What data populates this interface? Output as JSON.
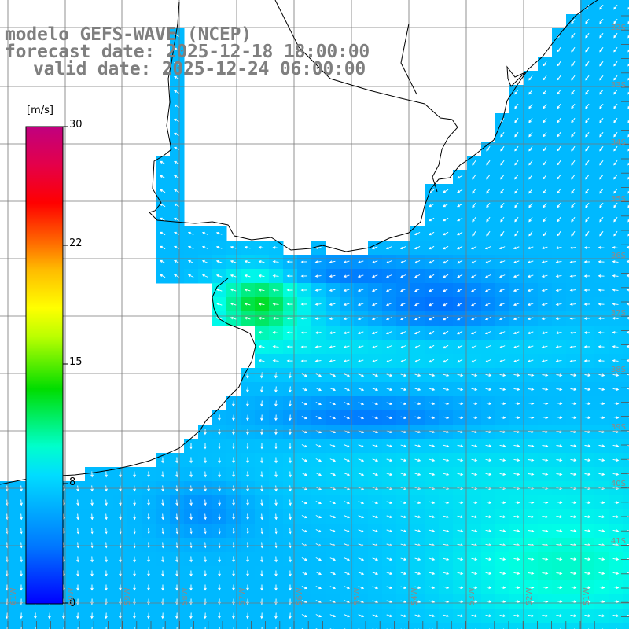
{
  "title": {
    "model": "modelo GEFS-WAVE (NCEP)",
    "forecast": "forecast date: 2025-12-18 18:00:00",
    "valid": "valid date: 2025-12-24 06:00:00"
  },
  "colorbar": {
    "units": "[m/s]",
    "ticks": [
      "30",
      "22",
      "15",
      "8",
      "0"
    ],
    "colors": [
      "#c8007a",
      "#ff0000",
      "#ff8800",
      "#ffff00",
      "#00dd00",
      "#00ffee",
      "#00aaff",
      "#0000ff"
    ]
  },
  "map": {
    "variable": "wind speed and direction",
    "land_color": "#ffffff",
    "coastline_color": "#000000",
    "grid_color": "#777777",
    "arrow_color": "#ffffff",
    "right_edge_labels": [
      "32S",
      "33S",
      "34S",
      "35S",
      "36S",
      "37S",
      "38S",
      "39S",
      "40S",
      "41S"
    ],
    "bottom_edge_labels": [
      "61W",
      "60W",
      "59W",
      "58W",
      "57W",
      "56W",
      "55W",
      "54W",
      "53W",
      "52W",
      "51W"
    ]
  }
}
